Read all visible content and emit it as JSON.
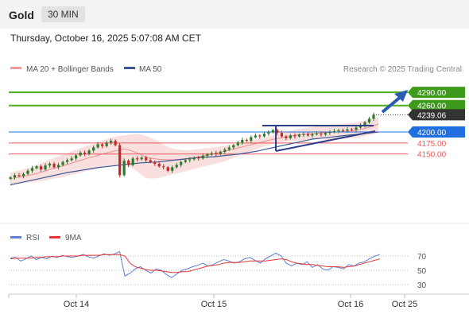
{
  "header": {
    "symbol": "Gold",
    "timeframe": "30 MIN"
  },
  "timestamp": "Thursday, October 16, 2025 5:07:08 AM CET",
  "legend": {
    "bollinger": "MA 20 + Bollinger Bands",
    "ma50": "MA 50",
    "credit": "Research © 2025 Trading Central"
  },
  "rsi_legend": {
    "rsi": "RSI",
    "ma": "9MA"
  },
  "colors": {
    "up": "#2a7a2a",
    "down": "#c62828",
    "resistance": "#4caf1a",
    "pivot": "#1f6fe0",
    "support": "#ea5a5a",
    "band": "#f6c4c4",
    "ma50": "#3a5a96",
    "current": "#333333",
    "rsi": "#5b7fd6",
    "rsi_ma": "#e53935",
    "arrow": "#2a5db0"
  },
  "chart_data": [
    {
      "type": "line",
      "title": "Gold",
      "timeframe": "30 MIN",
      "x_ticks": [
        "Oct 14",
        "Oct 15",
        "Oct 16",
        "Oct 25"
      ],
      "ylim": [
        4080,
        4310
      ],
      "series": [
        {
          "name": "Gold",
          "style": "candlestick",
          "close": [
            4097,
            4102,
            4100,
            4105,
            4112,
            4118,
            4122,
            4115,
            4124,
            4128,
            4120,
            4125,
            4132,
            4136,
            4140,
            4147,
            4153,
            4150,
            4158,
            4165,
            4172,
            4168,
            4176,
            4180,
            4170,
            4102,
            4135,
            4125,
            4140,
            4138,
            4142,
            4136,
            4132,
            4128,
            4122,
            4120,
            4112,
            4120,
            4125,
            4132,
            4136,
            4138,
            4142,
            4140,
            4146,
            4149,
            4152,
            4150,
            4155,
            4160,
            4165,
            4170,
            4176,
            4182,
            4180,
            4188,
            4192,
            4190,
            4196,
            4199,
            4204,
            4198,
            4190,
            4186,
            4192,
            4190,
            4194,
            4195,
            4192,
            4195,
            4196,
            4194,
            4198,
            4200,
            4202,
            4204,
            4203,
            4206,
            4205,
            4210,
            4215,
            4222,
            4230,
            4239
          ]
        },
        {
          "name": "MA 20 + Bollinger Bands",
          "style": "band",
          "upper": [
            4108,
            4112,
            4116,
            4120,
            4126,
            4134,
            4140,
            4146,
            4152,
            4158,
            4164,
            4170,
            4174,
            4180,
            4186,
            4190,
            4192,
            4194,
            4196,
            4192,
            4186,
            4178,
            4168,
            4162,
            4160,
            4158,
            4160,
            4162,
            4164,
            4166,
            4168,
            4170,
            4172,
            4176,
            4180,
            4184,
            4188,
            4192,
            4196,
            4200,
            4204,
            4208,
            4210,
            4212,
            4214,
            4216,
            4217,
            4218,
            4220,
            4222,
            4226,
            4230,
            4234
          ],
          "middle": [
            4094,
            4097,
            4100,
            4103,
            4107,
            4112,
            4117,
            4121,
            4126,
            4131,
            4136,
            4141,
            4145,
            4150,
            4154,
            4158,
            4162,
            4158,
            4152,
            4144,
            4140,
            4138,
            4137,
            4137,
            4138,
            4140,
            4142,
            4145,
            4148,
            4151,
            4155,
            4159,
            4163,
            4167,
            4171,
            4175,
            4179,
            4183,
            4186,
            4189,
            4192,
            4194,
            4196,
            4197,
            4198,
            4199,
            4200,
            4201,
            4202,
            4204,
            4208,
            4212,
            4218
          ],
          "lower": [
            4080,
            4082,
            4084,
            4086,
            4088,
            4090,
            4094,
            4096,
            4100,
            4104,
            4108,
            4112,
            4116,
            4120,
            4122,
            4126,
            4130,
            4120,
            4110,
            4096,
            4094,
            4096,
            4100,
            4104,
            4108,
            4112,
            4116,
            4120,
            4124,
            4128,
            4132,
            4138,
            4144,
            4150,
            4156,
            4162,
            4168,
            4172,
            4176,
            4178,
            4180,
            4180,
            4182,
            4184,
            4184,
            4182,
            4184,
            4184,
            4186,
            4186,
            4190,
            4194,
            4198
          ]
        },
        {
          "name": "MA 50",
          "values": [
            4080,
            4084,
            4088,
            4092,
            4096,
            4100,
            4104,
            4108,
            4111,
            4114,
            4117,
            4120,
            4122,
            4124,
            4126,
            4128,
            4130,
            4131,
            4132,
            4134,
            4136,
            4138,
            4140,
            4142,
            4143,
            4144,
            4146,
            4148,
            4150,
            4153,
            4156,
            4160,
            4164,
            4168,
            4172,
            4176,
            4180,
            4184,
            4186,
            4188,
            4190,
            4192,
            4194,
            4196,
            4198,
            4200
          ]
        }
      ],
      "levels": [
        {
          "label": "4290.00",
          "value": 4290,
          "kind": "resistance"
        },
        {
          "label": "4260.00",
          "value": 4260,
          "kind": "resistance"
        },
        {
          "label": "4239.06",
          "value": 4239.06,
          "kind": "current"
        },
        {
          "label": "4200.00",
          "value": 4200,
          "kind": "pivot"
        },
        {
          "label": "4175.00",
          "value": 4175,
          "kind": "support"
        },
        {
          "label": "4150.00",
          "value": 4150,
          "kind": "support"
        }
      ],
      "annotations": [
        "triangle",
        "up arrow"
      ]
    },
    {
      "type": "line",
      "title": "RSI",
      "y_ticks": [
        "70",
        "50",
        "30"
      ],
      "ylim": [
        20,
        80
      ],
      "series": [
        {
          "name": "RSI",
          "values": [
            67,
            68,
            63,
            66,
            70,
            65,
            68,
            66,
            70,
            68,
            71,
            69,
            68,
            70,
            72,
            69,
            67,
            70,
            73,
            71,
            73,
            76,
            42,
            46,
            52,
            55,
            50,
            46,
            52,
            50,
            44,
            40,
            45,
            50,
            52,
            55,
            57,
            60,
            56,
            58,
            62,
            65,
            63,
            60,
            62,
            66,
            68,
            64,
            60,
            66,
            70,
            74,
            70,
            60,
            56,
            60,
            58,
            62,
            54,
            58,
            52,
            50,
            55,
            54,
            52,
            58,
            56,
            60,
            62,
            66,
            70,
            72
          ]
        },
        {
          "name": "9MA",
          "values": [
            66,
            67,
            67,
            67,
            67,
            68,
            68,
            69,
            69,
            69,
            70,
            70,
            70,
            70,
            71,
            71,
            71,
            71,
            72,
            72,
            72,
            72,
            70,
            60,
            55,
            53,
            51,
            50,
            50,
            49,
            48,
            47,
            47,
            48,
            48,
            50,
            52,
            54,
            56,
            57,
            58,
            60,
            61,
            61,
            61,
            62,
            63,
            63,
            63,
            63,
            64,
            65,
            66,
            65,
            62,
            60,
            59,
            58,
            58,
            57,
            56,
            55,
            55,
            55,
            54,
            55,
            56,
            58,
            60,
            62,
            64,
            66
          ]
        }
      ]
    }
  ]
}
